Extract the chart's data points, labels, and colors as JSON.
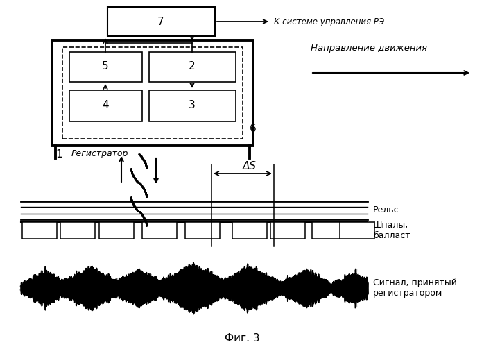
{
  "bg_color": "#ffffff",
  "title": "Фиг. 3",
  "label_k_sisteme": "К системе управления РЭ",
  "label_napravlenie": "Направление движения",
  "label_registrator": "Регистратор",
  "label_rels": "Рельс",
  "label_shpaly": "Шпалы,\nбалласт",
  "label_signal": "Сигнал, принятый\nрегистратором",
  "label_delta_s": "ΔS",
  "text_color": "#000000",
  "fig_w": 6.98,
  "fig_h": 5.0,
  "dpi": 100
}
